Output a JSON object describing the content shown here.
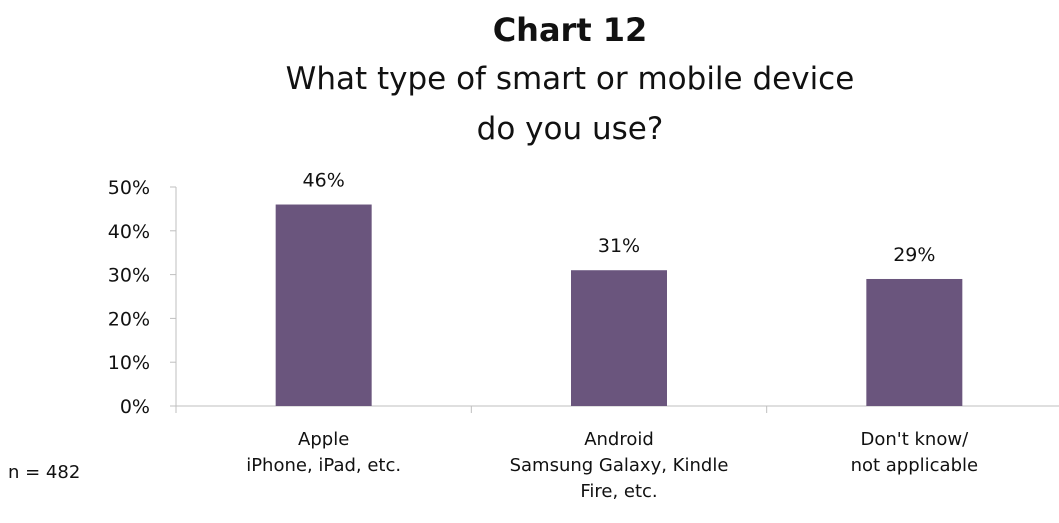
{
  "colors": {
    "bar": "#6a557d",
    "axis": "#bfbfbf",
    "text": "#111111"
  },
  "note": "n = 482",
  "chart_data": {
    "type": "bar",
    "title": "Chart 12",
    "subtitle_lines": [
      "What type of smart or mobile device",
      "do you use?"
    ],
    "categories": [
      [
        "Apple",
        "iPhone, iPad, etc."
      ],
      [
        "Android",
        "Samsung Galaxy, Kindle",
        "Fire, etc."
      ],
      [
        "Don't know/",
        "not applicable"
      ]
    ],
    "values": [
      46,
      31,
      29
    ],
    "data_labels": [
      "46%",
      "31%",
      "29%"
    ],
    "yticks": [
      "0%",
      "10%",
      "20%",
      "30%",
      "40%",
      "50%"
    ],
    "ylim": [
      0,
      50
    ],
    "xlabel": "",
    "ylabel": "",
    "grid": false,
    "legend": "none"
  }
}
